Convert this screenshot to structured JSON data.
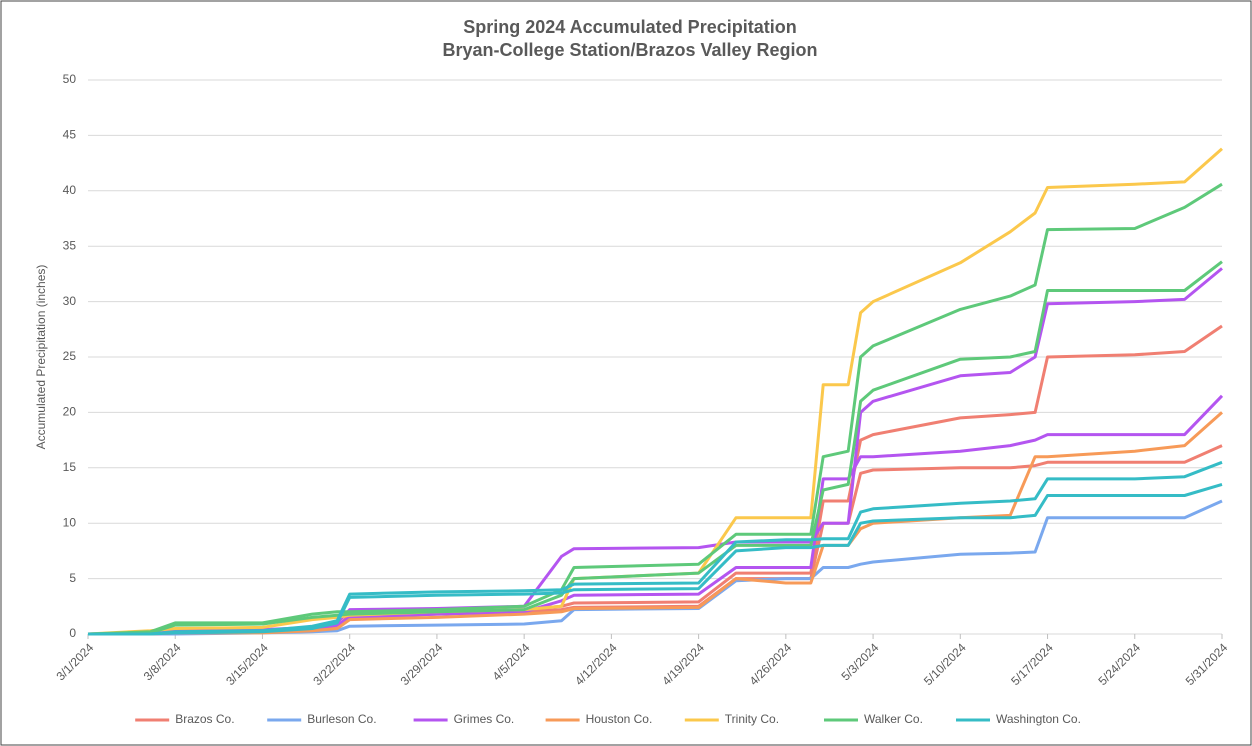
{
  "chart_data": {
    "type": "line",
    "title": "Spring 2024 Accumulated Precipitation",
    "subtitle": "Bryan-College Station/Brazos Valley Region",
    "y_label": "Accumulated Precipitation (inches)",
    "x": [
      "3/1/2024",
      "3/6/2024",
      "3/8/2024",
      "3/15/2024",
      "3/19/2024",
      "3/21/2024",
      "3/22/2024",
      "3/29/2024",
      "4/5/2024",
      "4/8/2024",
      "4/9/2024",
      "4/19/2024",
      "4/22/2024",
      "4/26/2024",
      "4/28/2024",
      "4/29/2024",
      "5/1/2024",
      "5/2/2024",
      "5/3/2024",
      "5/10/2024",
      "5/14/2024",
      "5/16/2024",
      "5/17/2024",
      "5/24/2024",
      "5/28/2024",
      "5/31/2024"
    ],
    "xticks": [
      "3/1/2024",
      "3/8/2024",
      "3/15/2024",
      "3/22/2024",
      "3/29/2024",
      "4/5/2024",
      "4/12/2024",
      "4/19/2024",
      "4/26/2024",
      "5/3/2024",
      "5/10/2024",
      "5/17/2024",
      "5/24/2024",
      "5/31/2024"
    ],
    "ylim": [
      0,
      50
    ],
    "yticks": [
      0,
      5,
      10,
      15,
      20,
      25,
      30,
      35,
      40,
      45,
      50
    ],
    "grid": true,
    "legend": "bottom",
    "series": [
      {
        "name": "Brazos Co.",
        "color": "#f07f72",
        "values": [
          [
            0,
            0,
            0.1,
            0.2,
            0.4,
            0.6,
            1.8,
            2,
            2.2,
            2.5,
            2.8,
            2.9,
            5.5,
            5.5,
            5.5,
            12,
            12,
            17.5,
            18,
            19.5,
            19.8,
            20,
            25,
            25.2,
            25.5,
            27.8
          ],
          [
            0,
            0,
            0.1,
            0.2,
            0.4,
            0.5,
            1.5,
            1.8,
            2,
            2.2,
            2.4,
            2.5,
            5,
            5,
            5,
            10,
            10,
            14.5,
            14.8,
            15,
            15,
            15.2,
            15.5,
            15.5,
            15.5,
            17
          ]
        ]
      },
      {
        "name": "Burleson Co.",
        "color": "#7aa8ee",
        "values": [
          [
            0,
            0,
            0,
            0.1,
            0.2,
            0.3,
            0.7,
            0.8,
            0.9,
            1.2,
            2.2,
            2.3,
            4.8,
            5,
            5,
            6,
            6,
            6.3,
            6.5,
            7.2,
            7.3,
            7.4,
            10.5,
            10.5,
            10.5,
            12
          ]
        ]
      },
      {
        "name": "Grimes Co.",
        "color": "#b455f0",
        "values": [
          [
            0,
            0.1,
            0.3,
            0.4,
            0.6,
            1,
            2.2,
            2.3,
            2.5,
            7,
            7.7,
            7.8,
            8.3,
            8.3,
            8.3,
            10,
            10,
            20,
            21,
            23.3,
            23.6,
            25,
            29.8,
            30,
            30.2,
            33
          ],
          [
            0,
            0,
            0.1,
            0.2,
            0.5,
            0.8,
            1.5,
            1.8,
            2,
            3,
            3.5,
            3.6,
            6,
            6,
            6,
            14,
            14,
            16,
            16,
            16.5,
            17,
            17.5,
            18,
            18,
            18,
            21.5
          ]
        ]
      },
      {
        "name": "Houston Co.",
        "color": "#f79a58",
        "values": [
          [
            0,
            0,
            0.1,
            0.1,
            0.3,
            0.5,
            1.3,
            1.5,
            1.8,
            2,
            2.3,
            2.4,
            5,
            4.6,
            4.6,
            8,
            8,
            9.5,
            10,
            10.5,
            10.7,
            16,
            16,
            16.5,
            17,
            20
          ]
        ]
      },
      {
        "name": "Trinity Co.",
        "color": "#fbc84c",
        "values": [
          [
            0,
            0.3,
            0.5,
            0.6,
            1.3,
            1.5,
            1.7,
            2,
            2.2,
            2.5,
            5,
            5.5,
            10.5,
            10.5,
            10.5,
            22.5,
            22.5,
            29,
            30,
            33.5,
            36.3,
            38,
            40.3,
            40.6,
            40.8,
            43.8
          ]
        ]
      },
      {
        "name": "Walker Co.",
        "color": "#5ec97a",
        "values": [
          [
            0,
            0.2,
            1,
            1,
            1.8,
            2,
            2,
            2.2,
            2.5,
            4,
            6,
            6.3,
            9,
            9,
            9,
            16,
            16.5,
            25,
            26,
            29.3,
            30.5,
            31.5,
            36.5,
            36.6,
            38.5,
            40.6
          ],
          [
            0,
            0.1,
            0.8,
            0.9,
            1.5,
            1.7,
            1.8,
            2,
            2.2,
            3.5,
            5,
            5.5,
            8,
            8,
            8,
            13,
            13.5,
            21,
            22,
            24.8,
            25,
            25.5,
            31,
            31,
            31,
            33.6
          ]
        ]
      },
      {
        "name": "Washington Co.",
        "color": "#35bcc6",
        "values": [
          [
            0,
            0,
            0.2,
            0.3,
            0.7,
            1.2,
            3.6,
            3.8,
            3.9,
            4,
            4.5,
            4.6,
            8.3,
            8.5,
            8.5,
            8.6,
            8.6,
            11,
            11.3,
            11.8,
            12,
            12.2,
            14,
            14,
            14.2,
            15.5
          ],
          [
            0,
            0,
            0.1,
            0.2,
            0.5,
            1,
            3.3,
            3.5,
            3.6,
            3.7,
            4,
            4.1,
            7.5,
            7.8,
            7.8,
            8,
            8,
            10,
            10.2,
            10.5,
            10.5,
            10.7,
            12.5,
            12.5,
            12.5,
            13.5
          ]
        ]
      }
    ]
  }
}
